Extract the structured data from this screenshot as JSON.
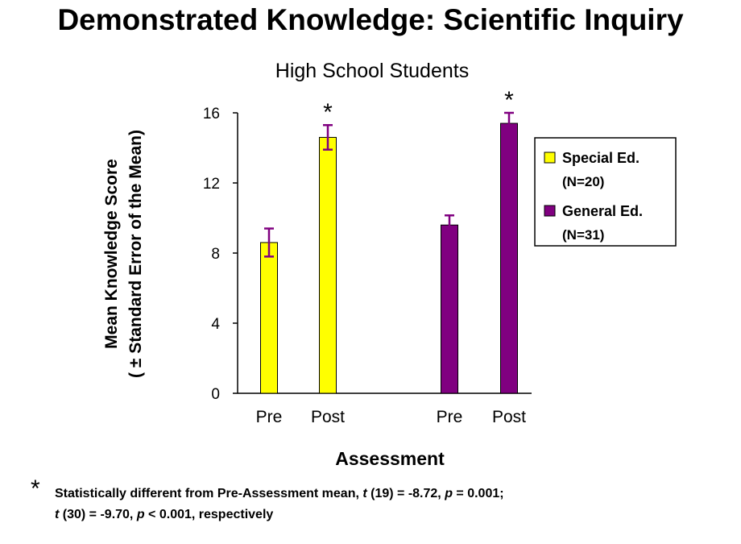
{
  "title": "Demonstrated Knowledge: Scientific Inquiry",
  "chart_data": {
    "type": "bar",
    "subtitle": "High School Students",
    "xlabel": "Assessment",
    "ylabel": [
      "Mean Knowledge Score",
      "( ± Standard Error of the Mean)"
    ],
    "ylim": [
      0,
      16
    ],
    "yticks": [
      0,
      4,
      8,
      12,
      16
    ],
    "grid": false,
    "legend_position": "right",
    "categories": [
      "Pre",
      "Post",
      "Pre",
      "Post"
    ],
    "significance_marker": "*",
    "series": [
      {
        "name": "Special Ed.",
        "legend_sub": "(N=20)",
        "color": "#ffff00",
        "bars": [
          {
            "label": "Pre",
            "value": 8.6,
            "error": 0.8,
            "significant": false
          },
          {
            "label": "Post",
            "value": 14.6,
            "error": 0.7,
            "significant": true
          }
        ]
      },
      {
        "name": "General Ed.",
        "legend_sub": "(N=31)",
        "color": "#800080",
        "bars": [
          {
            "label": "Pre",
            "value": 9.6,
            "error": 0.55,
            "significant": false
          },
          {
            "label": "Post",
            "value": 15.4,
            "error": 0.6,
            "significant": true
          }
        ]
      }
    ],
    "error_bar_color": "#800080"
  },
  "footnote": {
    "star": "*",
    "line1": [
      {
        "text": "Statistically different from Pre-Assessment mean, ",
        "italic": false
      },
      {
        "text": "t",
        "italic": true
      },
      {
        "text": " (19) = -8.72, ",
        "italic": false
      },
      {
        "text": "p",
        "italic": true
      },
      {
        "text": " = 0.001;",
        "italic": false
      }
    ],
    "line2": [
      {
        "text": "t",
        "italic": true
      },
      {
        "text": " (30) = -9.70, ",
        "italic": false
      },
      {
        "text": "p",
        "italic": true
      },
      {
        "text": " < 0.001, respectively",
        "italic": false
      }
    ]
  }
}
